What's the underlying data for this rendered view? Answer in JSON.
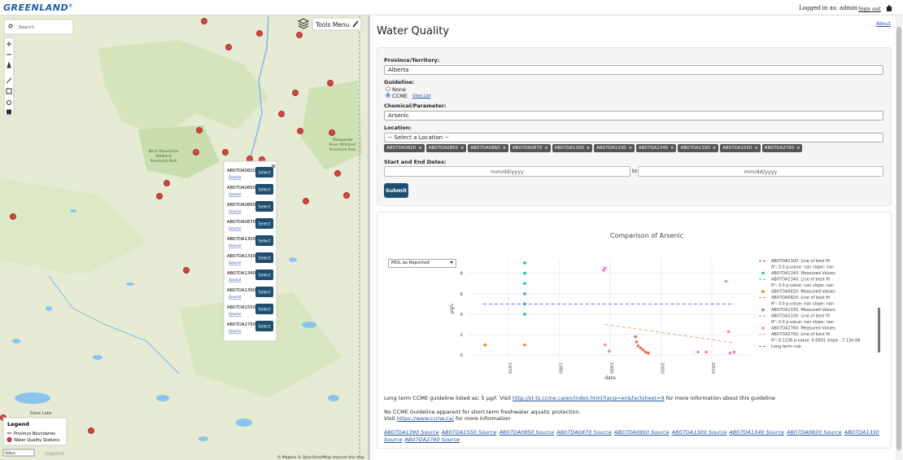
{
  "header": {
    "logo": "GREENLAND",
    "logo_mark": "®",
    "logged_in": "Logged in as: admin",
    "sign_out": "Sign out"
  },
  "map": {
    "search": "Search",
    "tools_menu": "Tools Menu",
    "places": [
      "Birch Mountains",
      "Wildland",
      "Provincial Park",
      "Marguerite",
      "River Wildland",
      "Provincial Park",
      "Slave Lake"
    ],
    "popup": {
      "button": "Select",
      "source": "Source",
      "stations": [
        "AB07DA0820",
        "AB07DA0850",
        "AB07DA0860",
        "AB07DA0870",
        "AB07DA1300",
        "AB07DA1330",
        "AB07DA1340",
        "AB07DA1390",
        "AB07DA1550",
        "AB07DA2760"
      ]
    },
    "legend": {
      "title": "Legend",
      "items": [
        "Province Boundaries",
        "Water Quality Stations"
      ]
    },
    "scale": "50km",
    "mapbox": "mapbox",
    "attribution": "© Mapbox © OpenStreetMap Improve this map"
  },
  "page": {
    "title": "Water Quality",
    "about": "About"
  },
  "form": {
    "province_label": "Province/Territory:",
    "province": "Alberta",
    "guideline_label": "Guideline:",
    "none": "None",
    "ccme": "CCME",
    "view_list": "View List",
    "chemical_label": "Chemical/Parameter:",
    "chemical": "Arsenic",
    "location_label": "Location:",
    "location": "-- Select a Location --",
    "chips": [
      "AB07DA0820",
      "AB07DA0850",
      "AB07DA0860",
      "AB07DA0870",
      "AB07DA1300",
      "AB07DA1330",
      "AB07DA1340",
      "AB07DA1390",
      "AB07DA1550",
      "AB07DA2760"
    ],
    "dates_label": "Start and End Dates:",
    "date_placeholder": "mm/dd/yyyy",
    "to": "to",
    "submit": "Submit"
  },
  "chart_data": {
    "type": "scatter",
    "title": "Comparison of Arsenic",
    "dropdown": "MDL as Reported",
    "y_label": "µg/L",
    "x_label": "date",
    "xlim": [
      1962,
      2018
    ],
    "xticks": [
      1970,
      1980,
      1990,
      2000,
      2010
    ],
    "ylim": [
      -0.3,
      9.4
    ],
    "yticks": [
      0,
      2,
      4,
      6,
      8
    ],
    "grid": true,
    "series": [
      {
        "name": "AB07DA1300: Line of best fit",
        "stats": "R²: 0.0 p-value: nan slope: nan",
        "mode": "lines",
        "color": "#d62728",
        "x": [],
        "values": []
      },
      {
        "name": "AB07DA1340: Measured Values",
        "mode": "markers",
        "color": "#17becf",
        "x": [
          1973.2,
          1973.2,
          1973.2,
          1973.2,
          1973.2,
          1973.2
        ],
        "values": [
          9,
          8,
          7,
          6,
          5,
          4
        ]
      },
      {
        "name": "AB07DA1340: Line of best fit",
        "stats": "R²: 0.0 p-value: nan slope: nan",
        "mode": "lines",
        "color": "#17becf",
        "x": [],
        "values": []
      },
      {
        "name": "AB07DA0820: Measured Values",
        "mode": "markers",
        "color": "#ff7f0e",
        "x": [
          1965.4,
          1973.2
        ],
        "values": [
          1,
          1
        ]
      },
      {
        "name": "AB07DA0820: Line of best fit",
        "stats": "R²: 0.0 p-value: nan slope: nan",
        "mode": "lines",
        "color": "#ff7f0e",
        "x": [],
        "values": []
      },
      {
        "name": "AB07DA1330: Measured Values",
        "mode": "markers",
        "color": "#ef6a4c",
        "x": [
          1995,
          1995.2,
          1995.5,
          1996,
          1996.5,
          1997,
          1997.5
        ],
        "values": [
          1.8,
          1.3,
          0.9,
          0.7,
          0.5,
          0.3,
          0.2
        ]
      },
      {
        "name": "AB07DA1330: Line of best fit",
        "stats": "R²: 0.0 p-value: nan slope: nan",
        "mode": "lines",
        "color": "#ef6a4c",
        "x": [],
        "values": []
      },
      {
        "name": "AB07DA2760: Measured Values",
        "mode": "markers",
        "color": "#ff77c8",
        "x": [
          1988.7,
          1989,
          1989,
          1989.8,
          2007.3,
          2008.9,
          2012.8,
          2013.3,
          2013.6,
          2014.4
        ],
        "values": [
          8.3,
          8.5,
          1,
          0.4,
          0.3,
          0.3,
          7.2,
          2.3,
          0.2,
          0.3
        ]
      },
      {
        "name": "AB07DA2760: Line of best fit",
        "stats": "R²: 0.1136 p-value: 0.0601 slope: -7.13e-06",
        "mode": "lines",
        "color": "#ffa15a",
        "x": [
          1989,
          2014.4
        ],
        "values": [
          3,
          1.2
        ]
      },
      {
        "name": "Long term rule",
        "mode": "lines",
        "color": "#636efa",
        "x": [
          1965,
          2014.4
        ],
        "values": [
          5,
          5
        ]
      }
    ]
  },
  "notes": {
    "guideline_pre": "Long term CCME guideline listed as: 5 µg/l. Visit ",
    "guideline_link": "http://st-ts.ccme.ca/en/index.html?lang=en&factsheet=9",
    "guideline_post": " for more information about this guideline",
    "short_term": "No CCME Guideline apparent for short term freshwater aquatic protection.",
    "visit_pre": "Visit ",
    "visit_link": "https://www.ccme.ca/",
    "visit_post": " for more information",
    "sources": [
      "AB07DA1390 Source",
      "AB07DA1550 Source",
      "AB07DA0850 Source",
      "AB07DA0870 Source",
      "AB07DA0860 Source",
      "AB07DA1300 Source",
      "AB07DA1340 Source",
      "AB07DA0820 Source",
      "AB07DA1330 Source",
      "AB07DA2760 Source"
    ]
  }
}
